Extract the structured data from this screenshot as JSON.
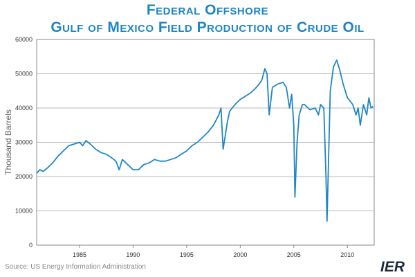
{
  "title_line1": "Federal Offshore",
  "title_line2": "Gulf of Mexico Field Production of Crude Oil",
  "source": "Source: US Energy Information Administration",
  "logo_text": "IER",
  "colors": {
    "title": "#1f86c4",
    "line": "#1f86c4",
    "grid": "#a0a0a0"
  },
  "chart_data": {
    "type": "line",
    "title": "Federal Offshore Gulf of Mexico Field Production of Crude Oil",
    "xlabel": "",
    "ylabel": "Thousand Barrels",
    "xlim": [
      1981,
      2012.5
    ],
    "ylim": [
      0,
      60000
    ],
    "x_ticks": [
      1985,
      1990,
      1995,
      2000,
      2005,
      2010
    ],
    "y_ticks": [
      0,
      10000,
      20000,
      30000,
      40000,
      50000,
      60000
    ],
    "grid": "horizontal",
    "legend": "none",
    "series": [
      {
        "x": [
          1981.0,
          1981.3,
          1981.6,
          1982.0,
          1982.5,
          1983.0,
          1983.5,
          1984.0,
          1984.5,
          1985.0,
          1985.3,
          1985.6,
          1986.0,
          1986.5,
          1987.0,
          1987.5,
          1988.0,
          1988.4,
          1988.7,
          1989.0,
          1989.5,
          1990.0,
          1990.5,
          1991.0,
          1991.5,
          1992.0,
          1992.5,
          1993.0,
          1993.5,
          1994.0,
          1994.5,
          1995.0,
          1995.5,
          1996.0,
          1996.5,
          1997.0,
          1997.5,
          1998.0,
          1998.2,
          1998.4,
          1998.8,
          1999.0,
          1999.5,
          2000.0,
          2000.5,
          2001.0,
          2001.5,
          2002.0,
          2002.3,
          2002.5,
          2002.7,
          2003.0,
          2003.5,
          2004.0,
          2004.3,
          2004.6,
          2004.8,
          2005.0,
          2005.1,
          2005.3,
          2005.5,
          2005.8,
          2006.0,
          2006.5,
          2007.0,
          2007.3,
          2007.5,
          2007.8,
          2008.0,
          2008.1,
          2008.4,
          2008.7,
          2009.0,
          2009.3,
          2009.6,
          2010.0,
          2010.5,
          2010.8,
          2011.0,
          2011.2,
          2011.5,
          2011.8,
          2012.0,
          2012.2,
          2012.4
        ],
        "y": [
          21000,
          22000,
          21500,
          22500,
          24000,
          26000,
          27500,
          29000,
          29500,
          30000,
          29000,
          30500,
          29500,
          28000,
          27000,
          26500,
          25500,
          24500,
          22000,
          25000,
          23500,
          22000,
          22000,
          23500,
          24000,
          25000,
          24500,
          24500,
          25000,
          25500,
          26500,
          27500,
          29000,
          30000,
          31500,
          33000,
          35000,
          38000,
          40000,
          28000,
          36000,
          39000,
          41000,
          42500,
          43500,
          44500,
          46000,
          48000,
          51500,
          50000,
          38000,
          46000,
          47000,
          47500,
          46000,
          40000,
          44000,
          35000,
          14000,
          30000,
          38000,
          41000,
          41000,
          39500,
          40000,
          38000,
          41000,
          40000,
          20000,
          7000,
          45000,
          52000,
          54000,
          51000,
          47000,
          43000,
          41000,
          38000,
          40000,
          35000,
          41000,
          38000,
          43000,
          40000,
          40500
        ]
      }
    ]
  }
}
